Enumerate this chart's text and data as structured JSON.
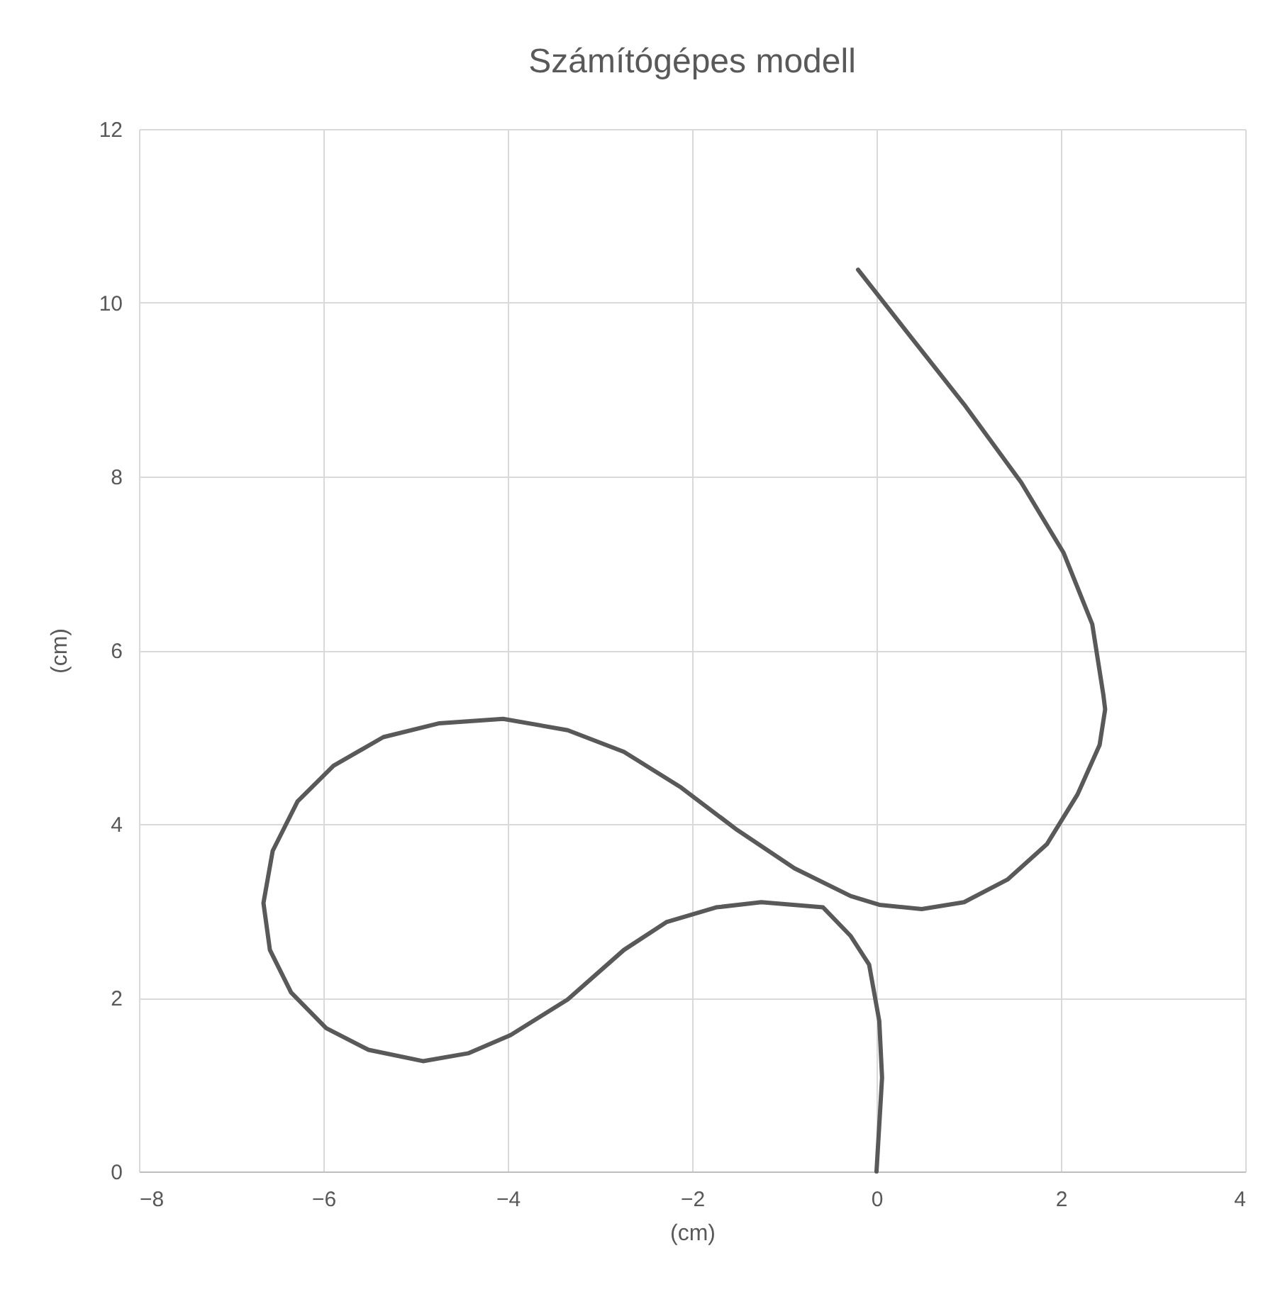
{
  "chart_data": {
    "type": "line",
    "title": "Számítógépes modell",
    "xlabel": "(cm)",
    "ylabel": "(cm)",
    "xlim": [
      -8,
      4
    ],
    "xticks": [
      -8,
      -6,
      -4,
      -2,
      0,
      2,
      4
    ],
    "ylim": [
      0,
      12
    ],
    "yticks": [
      0,
      2,
      4,
      6,
      8,
      10,
      12
    ],
    "grid": true,
    "marker": "none",
    "line_style": "solid",
    "series": [
      {
        "color": "#595959",
        "x": [
          0.0,
          0.06,
          0.03,
          -0.08,
          -0.28,
          -0.58,
          -1.25,
          -1.74,
          -2.28,
          -2.74,
          -3.35,
          -3.97,
          -4.43,
          -4.92,
          -5.51,
          -5.97,
          -6.35,
          -6.58,
          -6.65,
          -6.55,
          -6.28,
          -5.89,
          -5.35,
          -4.74,
          -4.05,
          -3.35,
          -2.74,
          -2.12,
          -1.51,
          -0.89,
          -0.28,
          0.03,
          0.49,
          0.95,
          1.42,
          1.85,
          2.18,
          2.42,
          2.48,
          2.46,
          2.34,
          2.03,
          1.57,
          0.95,
          0.34,
          -0.2
        ],
        "values": [
          0,
          1.08,
          1.73,
          2.38,
          2.71,
          3.04,
          3.1,
          3.04,
          2.87,
          2.55,
          1.98,
          1.57,
          1.36,
          1.27,
          1.4,
          1.65,
          2.06,
          2.55,
          3.09,
          3.69,
          4.26,
          4.67,
          5.0,
          5.16,
          5.21,
          5.08,
          4.83,
          4.42,
          3.93,
          3.49,
          3.17,
          3.07,
          3.02,
          3.1,
          3.36,
          3.77,
          4.34,
          4.91,
          5.32,
          5.49,
          6.3,
          7.12,
          7.93,
          8.83,
          9.65,
          10.38
        ]
      }
    ]
  }
}
